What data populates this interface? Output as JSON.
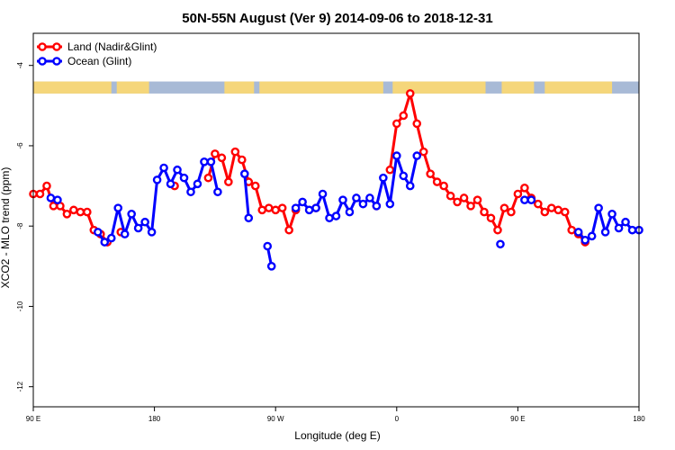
{
  "chart_data": {
    "type": "line",
    "title": "50N-55N August (Ver 9)   2014-09-06 to 2018-12-31",
    "xlabel": "Longitude (deg E)",
    "ylabel": "XCO2 - MLO trend (ppm)",
    "xlim": [
      90,
      540
    ],
    "ylim": [
      -12.5,
      -3.2
    ],
    "x_ticks": [
      {
        "value": 90,
        "label": "90 E"
      },
      {
        "value": 180,
        "label": "180"
      },
      {
        "value": 270,
        "label": "90 W"
      },
      {
        "value": 360,
        "label": "0"
      },
      {
        "value": 450,
        "label": "90 E"
      },
      {
        "value": 540,
        "label": "180"
      }
    ],
    "y_ticks": [
      -4,
      -6,
      -8,
      -10,
      -12
    ],
    "legend_placement": "top-left",
    "grid": false,
    "land_ocean_strip": {
      "y_top": -4.4,
      "y_bottom": -4.7,
      "land_color": "#f5d67a",
      "ocean_color": "#a8bad6"
    },
    "series": [
      {
        "name": "Land (Nadir&Glint)",
        "color": "#ff0000",
        "segments": [
          [
            [
              90,
              -7.2
            ],
            [
              95,
              -7.2
            ],
            [
              100,
              -7.0
            ],
            [
              105,
              -7.5
            ],
            [
              110,
              -7.5
            ],
            [
              115,
              -7.7
            ],
            [
              120,
              -7.6
            ],
            [
              125,
              -7.65
            ],
            [
              130,
              -7.65
            ],
            [
              135,
              -8.1
            ],
            [
              140,
              -8.2
            ],
            [
              145,
              -8.4
            ]
          ],
          [
            [
              155,
              -8.15
            ]
          ],
          [
            [
              195,
              -7.0
            ]
          ],
          [
            [
              220,
              -6.8
            ],
            [
              225,
              -6.2
            ],
            [
              230,
              -6.3
            ],
            [
              235,
              -6.9
            ],
            [
              240,
              -6.15
            ],
            [
              245,
              -6.35
            ],
            [
              250,
              -6.9
            ],
            [
              255,
              -7.0
            ],
            [
              260,
              -7.6
            ],
            [
              265,
              -7.55
            ],
            [
              270,
              -7.6
            ],
            [
              275,
              -7.55
            ],
            [
              280,
              -8.1
            ],
            [
              285,
              -7.6
            ]
          ],
          [
            [
              300,
              -7.55
            ]
          ],
          [
            [
              345,
              -7.5
            ]
          ],
          [
            [
              355,
              -6.6
            ],
            [
              360,
              -5.45
            ],
            [
              365,
              -5.25
            ],
            [
              370,
              -4.7
            ],
            [
              375,
              -5.45
            ],
            [
              380,
              -6.15
            ],
            [
              385,
              -6.7
            ],
            [
              390,
              -6.9
            ],
            [
              395,
              -7.0
            ],
            [
              400,
              -7.25
            ],
            [
              405,
              -7.4
            ],
            [
              410,
              -7.3
            ],
            [
              415,
              -7.5
            ],
            [
              420,
              -7.35
            ],
            [
              425,
              -7.65
            ],
            [
              430,
              -7.8
            ],
            [
              435,
              -8.1
            ],
            [
              440,
              -7.55
            ],
            [
              445,
              -7.65
            ],
            [
              450,
              -7.2
            ],
            [
              455,
              -7.05
            ],
            [
              460,
              -7.3
            ],
            [
              465,
              -7.45
            ],
            [
              470,
              -7.65
            ],
            [
              475,
              -7.55
            ],
            [
              480,
              -7.6
            ],
            [
              485,
              -7.65
            ],
            [
              490,
              -8.1
            ],
            [
              495,
              -8.2
            ],
            [
              500,
              -8.4
            ]
          ]
        ]
      },
      {
        "name": "Ocean (Glint)",
        "color": "#0000ff",
        "segments": [
          [
            [
              103,
              -7.3
            ],
            [
              108,
              -7.35
            ]
          ],
          [
            [
              138,
              -8.15
            ],
            [
              143,
              -8.4
            ],
            [
              148,
              -8.3
            ],
            [
              153,
              -7.55
            ],
            [
              158,
              -8.2
            ],
            [
              163,
              -7.7
            ],
            [
              168,
              -8.05
            ],
            [
              173,
              -7.9
            ],
            [
              178,
              -8.15
            ],
            [
              182,
              -6.85
            ],
            [
              187,
              -6.55
            ],
            [
              192,
              -6.95
            ],
            [
              197,
              -6.6
            ],
            [
              202,
              -6.8
            ],
            [
              207,
              -7.15
            ],
            [
              212,
              -6.95
            ],
            [
              217,
              -6.4
            ],
            [
              222,
              -6.4
            ],
            [
              227,
              -7.15
            ]
          ],
          [
            [
              247,
              -6.7
            ],
            [
              250,
              -7.8
            ]
          ],
          [
            [
              264,
              -8.5
            ],
            [
              267,
              -9.0
            ]
          ],
          [
            [
              285,
              -7.55
            ],
            [
              290,
              -7.4
            ],
            [
              295,
              -7.6
            ],
            [
              300,
              -7.55
            ],
            [
              305,
              -7.2
            ],
            [
              310,
              -7.8
            ],
            [
              315,
              -7.75
            ],
            [
              320,
              -7.35
            ],
            [
              325,
              -7.65
            ],
            [
              330,
              -7.3
            ],
            [
              335,
              -7.45
            ],
            [
              340,
              -7.3
            ],
            [
              345,
              -7.5
            ],
            [
              350,
              -6.8
            ],
            [
              355,
              -7.45
            ],
            [
              360,
              -6.25
            ],
            [
              365,
              -6.75
            ],
            [
              370,
              -7.0
            ],
            [
              375,
              -6.25
            ]
          ],
          [
            [
              437,
              -8.45
            ]
          ],
          [
            [
              455,
              -7.35
            ],
            [
              460,
              -7.35
            ]
          ],
          [
            [
              495,
              -8.15
            ],
            [
              500,
              -8.35
            ],
            [
              505,
              -8.25
            ],
            [
              510,
              -7.55
            ],
            [
              515,
              -8.15
            ],
            [
              520,
              -7.7
            ],
            [
              525,
              -8.05
            ],
            [
              530,
              -7.9
            ],
            [
              535,
              -8.1
            ],
            [
              540,
              -8.1
            ]
          ]
        ]
      }
    ]
  }
}
